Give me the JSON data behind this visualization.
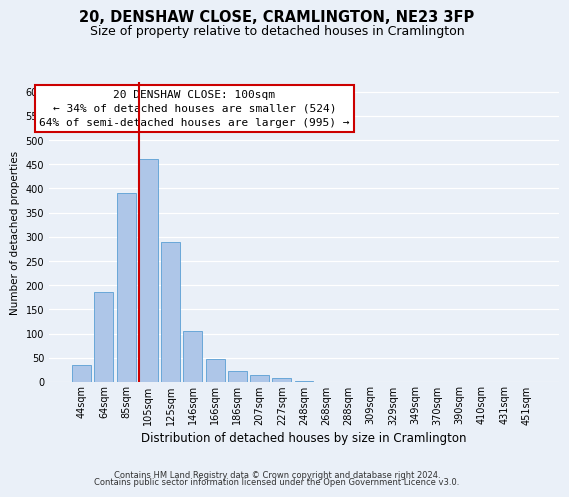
{
  "title": "20, DENSHAW CLOSE, CRAMLINGTON, NE23 3FP",
  "subtitle": "Size of property relative to detached houses in Cramlington",
  "xlabel": "Distribution of detached houses by size in Cramlington",
  "ylabel": "Number of detached properties",
  "bar_labels": [
    "44sqm",
    "64sqm",
    "85sqm",
    "105sqm",
    "125sqm",
    "146sqm",
    "166sqm",
    "186sqm",
    "207sqm",
    "227sqm",
    "248sqm",
    "268sqm",
    "288sqm",
    "309sqm",
    "329sqm",
    "349sqm",
    "370sqm",
    "390sqm",
    "410sqm",
    "431sqm",
    "451sqm"
  ],
  "bar_values": [
    35,
    185,
    390,
    460,
    290,
    105,
    48,
    22,
    15,
    8,
    2,
    1,
    1,
    0,
    0,
    1,
    0,
    0,
    0,
    0,
    1
  ],
  "bar_color": "#aec6e8",
  "bar_edge_color": "#5a9fd4",
  "vline_color": "#cc0000",
  "ylim": [
    0,
    620
  ],
  "yticks": [
    0,
    50,
    100,
    150,
    200,
    250,
    300,
    350,
    400,
    450,
    500,
    550,
    600
  ],
  "annotation_title": "20 DENSHAW CLOSE: 100sqm",
  "annotation_line1": "← 34% of detached houses are smaller (524)",
  "annotation_line2": "64% of semi-detached houses are larger (995) →",
  "annotation_box_color": "#ffffff",
  "annotation_box_edge": "#cc0000",
  "footer1": "Contains HM Land Registry data © Crown copyright and database right 2024.",
  "footer2": "Contains public sector information licensed under the Open Government Licence v3.0.",
  "bg_color": "#eaf0f8",
  "plot_bg_color": "#eaf0f8",
  "grid_color": "#ffffff",
  "title_fontsize": 10.5,
  "subtitle_fontsize": 9,
  "xlabel_fontsize": 8.5,
  "ylabel_fontsize": 7.5,
  "tick_fontsize": 7,
  "footer_fontsize": 6,
  "annotation_fontsize": 8
}
